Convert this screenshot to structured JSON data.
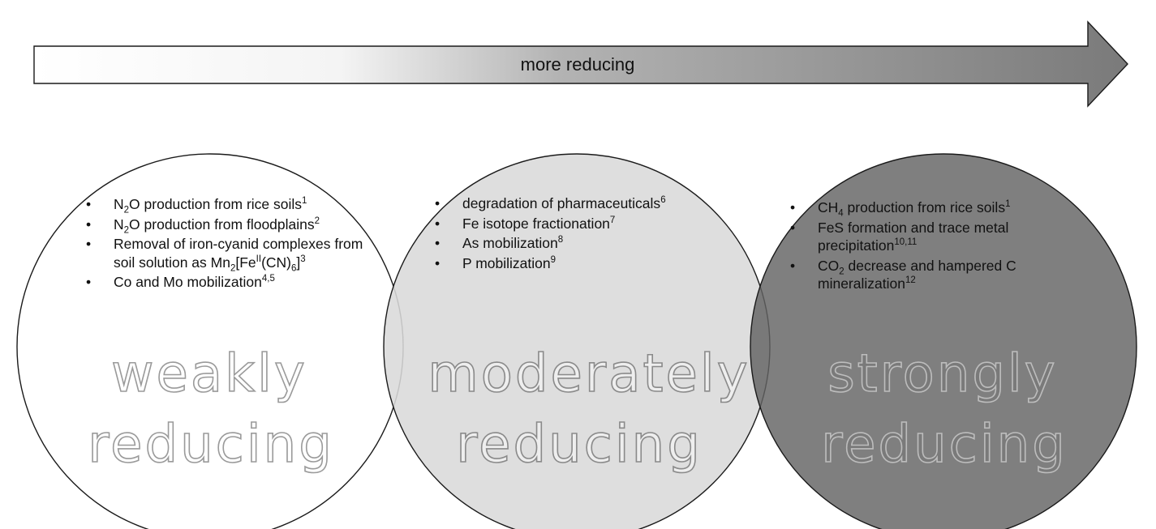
{
  "arrow": {
    "label": "more reducing",
    "colors": {
      "start": "#ffffff",
      "end": "#7a7a7a",
      "stroke": "#1a1a1a"
    }
  },
  "circles": [
    {
      "title_line1": "weakly",
      "title_line2": "reducing",
      "fill": "#ffffff",
      "items": [
        {
          "text": "N<sub>2</sub>O production from rice soils<sup>1</sup>"
        },
        {
          "text": "N<sub>2</sub>O production from floodplains<sup>2</sup>"
        },
        {
          "text": "Removal of iron-cyanid complexes from soil solution as Mn<sub>2</sub>[Fe<sup>II</sup>(CN)<sub>6</sub>]<sup>3</sup>"
        },
        {
          "text": "Co and Mo mobilization<sup>4,5</sup>"
        }
      ]
    },
    {
      "title_line1": "moderately",
      "title_line2": "reducing",
      "fill": "#d9d9d9",
      "items": [
        {
          "text": "degradation of pharmaceuticals<sup>6</sup>"
        },
        {
          "text": "Fe isotope fractionation<sup>7</sup>"
        },
        {
          "text": "As mobilization<sup>8</sup>"
        },
        {
          "text": "P mobilization<sup>9</sup>"
        }
      ]
    },
    {
      "title_line1": "strongly",
      "title_line2": "reducing",
      "fill": "#7a7a7a",
      "items": [
        {
          "text": "CH<sub>4</sub> production from rice soils<sup>1</sup>"
        },
        {
          "text": "FeS formation and trace metal precipitation<sup>10,11</sup>"
        },
        {
          "text": "CO<sub>2</sub> decrease and hampered C mineralization<sup>12</sup>"
        }
      ]
    }
  ]
}
